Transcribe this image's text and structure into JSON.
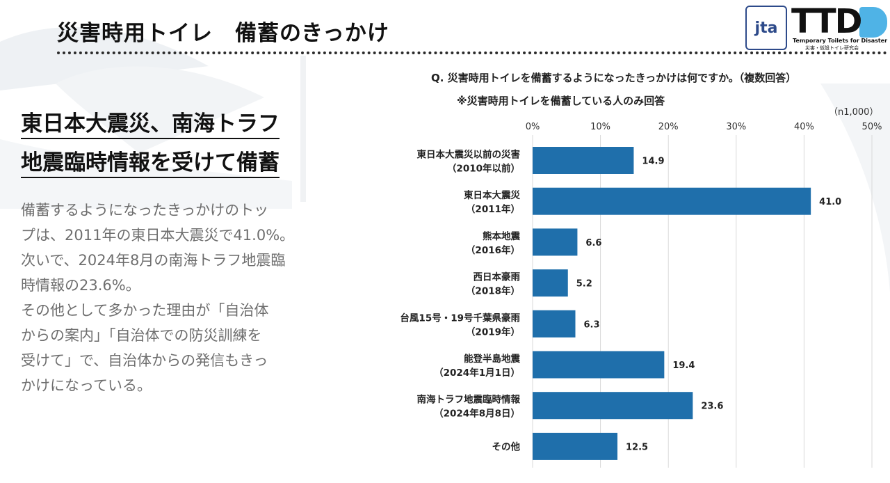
{
  "header": {
    "title": "災害時用トイレ　備蓄のきっかけ",
    "logo_jta": "jta",
    "logo_ttd": "TTD",
    "logo_ttd_sub": "Temporary Toilets for Disaster",
    "logo_ttd_sub_jp": "災害・仮設トイレ研究会"
  },
  "left_panel": {
    "headline_lines": [
      "東日本大震災、南海トラフ",
      "地震臨時情報を受けて備蓄"
    ],
    "body_lines": [
      "備蓄するようになったきっかけのトッ",
      "プは、2011年の東日本大震災で41.0%。",
      "次いで、2024年8月の南海トラフ地震臨",
      "時情報の23.6%。",
      "その他として多かった理由が「自治体",
      "からの案内」「自治体での防災訓練を",
      "受けて」で、自治体からの発信もきっ",
      "かけになっている。"
    ]
  },
  "chart_text": {
    "question": "Q. 災害時用トイレを備蓄するようになったきっかけは何ですか。（複数回答）",
    "note": "※災害時用トイレを備蓄している人のみ回答",
    "sample": "（n1,000）"
  },
  "chart_data": {
    "type": "bar",
    "orientation": "horizontal",
    "categories": [
      [
        "東日本大震災以前の災害",
        "（2010年以前）"
      ],
      [
        "東日本大震災",
        "（2011年）"
      ],
      [
        "熊本地震",
        "（2016年）"
      ],
      [
        "西日本豪雨",
        "（2018年）"
      ],
      [
        "台風15号・19号千葉県豪雨",
        "（2019年）"
      ],
      [
        "能登半島地震",
        "（2024年1月1日）"
      ],
      [
        "南海トラフ地震臨時情報",
        "（2024年8月8日）"
      ],
      [
        "その他"
      ]
    ],
    "values": [
      14.9,
      41.0,
      6.6,
      5.2,
      6.3,
      19.4,
      23.6,
      12.5
    ],
    "value_labels": [
      "14.9",
      "41.0",
      "6.6",
      "5.2",
      "6.3",
      "19.4",
      "23.6",
      "12.5"
    ],
    "ticks": [
      "0%",
      "10%",
      "20%",
      "30%",
      "40%",
      "50%"
    ],
    "xlim": [
      0,
      50
    ],
    "grid": true,
    "bar_color": "#1f6fab",
    "grid_color": "#d9d9d9"
  }
}
